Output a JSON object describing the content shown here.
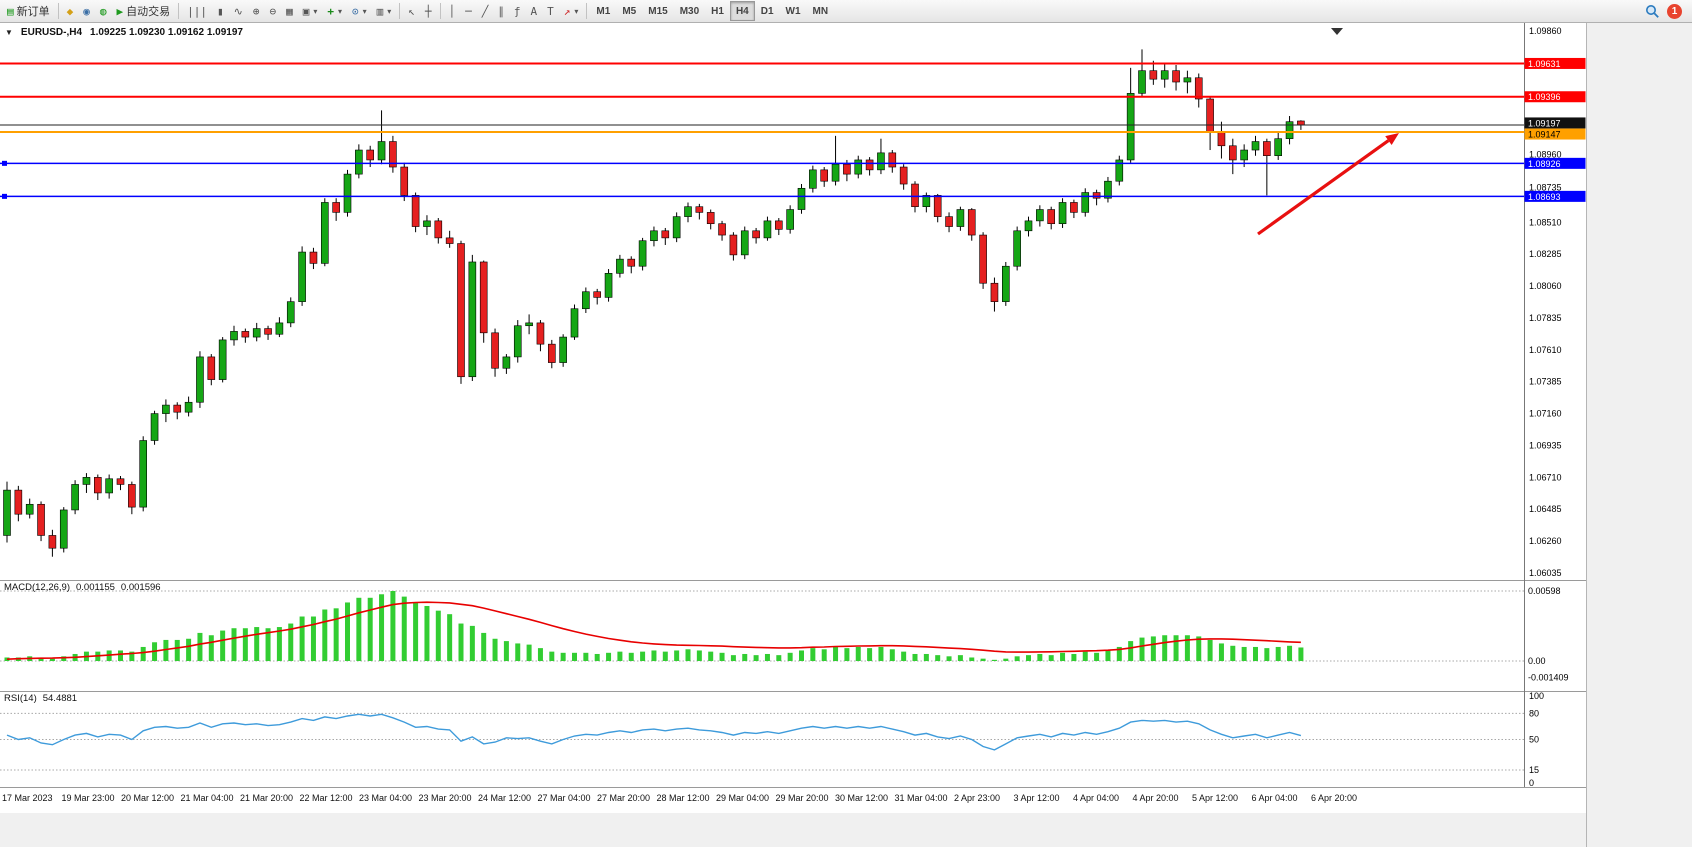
{
  "toolbar": {
    "new_order_label": "新订单",
    "autot_label": "自动交易",
    "timeframes": [
      "M1",
      "M5",
      "M15",
      "M30",
      "H1",
      "H4",
      "D1",
      "W1",
      "MN"
    ],
    "active_timeframe": "H4",
    "notification_count": "1"
  },
  "icons": {
    "collapse": "▼",
    "new_order": "▤",
    "charts": "◆",
    "profile": "◉",
    "algo": "◍",
    "autotrading": "▶",
    "bar_chart": "|||",
    "candle_chart": "▮",
    "line_chart": "∿",
    "zoom_in": "⊕",
    "zoom_out": "⊖",
    "tile_windows": "▦",
    "new_chart": "▣",
    "indicators": "+",
    "periods": "⊙",
    "templates": "▥",
    "cursor": "↖",
    "crosshair": "┼",
    "vertical_line": "│",
    "horizontal_line": "─",
    "trendline": "╱",
    "channel": "∥",
    "fibonacci": "ƒ",
    "text": "A",
    "text_label": "T",
    "arrows": "↗",
    "caret": "▾"
  },
  "window": {
    "symbol_period": "EURUSD-,H4",
    "ohlc_text": "1.09225 1.09230 1.09162 1.09197"
  },
  "colors": {
    "bull": "#15A615",
    "bear": "#E52020",
    "wick": "#000000",
    "background": "#FFFFFF",
    "macd_histogram": "#32CD32",
    "macd_signal": "#E80000",
    "rsi_line": "#3E9BDB",
    "arrow": "#E81010"
  },
  "chart_data": {
    "type": "candlestick",
    "symbol": "EURUSD-",
    "timeframe": "H4",
    "price_range": {
      "top": 1.0986,
      "bottom": 1.06035
    },
    "price_axis_ticks": [
      1.0986,
      1.0896,
      1.08735,
      1.0851,
      1.08285,
      1.0806,
      1.07835,
      1.0761,
      1.07385,
      1.0716,
      1.06935,
      1.0671,
      1.06485,
      1.0626,
      1.06035
    ],
    "time_labels": [
      "17 Mar 2023",
      "19 Mar 23:00",
      "20 Mar 12:00",
      "21 Mar 04:00",
      "21 Mar 20:00",
      "22 Mar 12:00",
      "23 Mar 04:00",
      "23 Mar 20:00",
      "24 Mar 12:00",
      "27 Mar 04:00",
      "27 Mar 20:00",
      "28 Mar 12:00",
      "29 Mar 04:00",
      "29 Mar 20:00",
      "30 Mar 12:00",
      "31 Mar 04:00",
      "2 Apr 23:00",
      "3 Apr 12:00",
      "4 Apr 04:00",
      "4 Apr 20:00",
      "5 Apr 12:00",
      "6 Apr 04:00",
      "6 Apr 20:00"
    ],
    "levels": [
      {
        "price": 1.09631,
        "label": "1.09631",
        "color": "#FF0000",
        "width": 2,
        "badge_fg": "#FFFFFF"
      },
      {
        "price": 1.09396,
        "label": "1.09396",
        "color": "#FF0000",
        "width": 2,
        "badge_fg": "#FFFFFF"
      },
      {
        "price": 1.09197,
        "label": "1.09197",
        "color": "#222222",
        "width": 1,
        "badge_fg": "#FFFFFF",
        "badge_dy": -2,
        "current": true
      },
      {
        "price": 1.09147,
        "label": "1.09147",
        "color": "#FFA000",
        "width": 2,
        "badge_fg": "#000000",
        "badge_dy": 2
      },
      {
        "price": 1.08926,
        "label": "1.08926",
        "color": "#0000FF",
        "width": 1.5,
        "badge_fg": "#FFFFFF",
        "handles": true
      },
      {
        "price": 1.08693,
        "label": "1.08693",
        "color": "#0000FF",
        "width": 1.5,
        "badge_fg": "#FFFFFF",
        "handles": true
      }
    ],
    "candles": [
      [
        1.063,
        1.0668,
        1.0625,
        1.0662
      ],
      [
        1.0662,
        1.0665,
        1.064,
        1.0645
      ],
      [
        1.0645,
        1.0656,
        1.0642,
        1.0652
      ],
      [
        1.0652,
        1.0654,
        1.0626,
        1.063
      ],
      [
        1.063,
        1.0634,
        1.0615,
        1.0621
      ],
      [
        1.0621,
        1.065,
        1.0618,
        1.0648
      ],
      [
        1.0648,
        1.0669,
        1.0645,
        1.0666
      ],
      [
        1.0666,
        1.0674,
        1.066,
        1.0671
      ],
      [
        1.0671,
        1.0673,
        1.0655,
        1.066
      ],
      [
        1.066,
        1.0673,
        1.0656,
        1.067
      ],
      [
        1.067,
        1.0672,
        1.0662,
        1.0666
      ],
      [
        1.0666,
        1.0668,
        1.0645,
        1.065
      ],
      [
        1.065,
        1.07,
        1.0647,
        1.0697
      ],
      [
        1.0697,
        1.0718,
        1.0694,
        1.0716
      ],
      [
        1.0716,
        1.0726,
        1.071,
        1.0722
      ],
      [
        1.0722,
        1.0724,
        1.0712,
        1.0717
      ],
      [
        1.0717,
        1.0728,
        1.0714,
        1.0724
      ],
      [
        1.0724,
        1.076,
        1.072,
        1.0756
      ],
      [
        1.0756,
        1.0758,
        1.0736,
        1.074
      ],
      [
        1.074,
        1.077,
        1.0738,
        1.0768
      ],
      [
        1.0768,
        1.0778,
        1.0764,
        1.0774
      ],
      [
        1.0774,
        1.0776,
        1.0766,
        1.077
      ],
      [
        1.077,
        1.078,
        1.0767,
        1.0776
      ],
      [
        1.0776,
        1.0778,
        1.0768,
        1.0772
      ],
      [
        1.0772,
        1.0784,
        1.077,
        1.078
      ],
      [
        1.078,
        1.0798,
        1.0777,
        1.0795
      ],
      [
        1.0795,
        1.0834,
        1.0792,
        1.083
      ],
      [
        1.083,
        1.0833,
        1.0818,
        1.0822
      ],
      [
        1.0822,
        1.0868,
        1.082,
        1.0865
      ],
      [
        1.0865,
        1.0868,
        1.0852,
        1.0858
      ],
      [
        1.0858,
        1.0888,
        1.0855,
        1.0885
      ],
      [
        1.0885,
        1.0906,
        1.0882,
        1.0902
      ],
      [
        1.0902,
        1.0905,
        1.089,
        1.0895
      ],
      [
        1.0895,
        1.093,
        1.0892,
        1.0908
      ],
      [
        1.0908,
        1.0912,
        1.0886,
        1.089
      ],
      [
        1.089,
        1.0893,
        1.0866,
        1.087
      ],
      [
        1.087,
        1.0872,
        1.0844,
        1.0848
      ],
      [
        1.0848,
        1.0856,
        1.0842,
        1.0852
      ],
      [
        1.0852,
        1.0854,
        1.0836,
        1.084
      ],
      [
        1.084,
        1.0845,
        1.0833,
        1.0836
      ],
      [
        1.0836,
        1.0838,
        1.0737,
        1.0742
      ],
      [
        1.0742,
        1.0828,
        1.0739,
        1.0823
      ],
      [
        1.0823,
        1.0824,
        1.0766,
        1.0773
      ],
      [
        1.0773,
        1.0776,
        1.0742,
        1.0748
      ],
      [
        1.0748,
        1.0758,
        1.0744,
        1.0756
      ],
      [
        1.0756,
        1.0782,
        1.0752,
        1.0778
      ],
      [
        1.0778,
        1.0786,
        1.0772,
        1.078
      ],
      [
        1.078,
        1.0782,
        1.076,
        1.0765
      ],
      [
        1.0765,
        1.0768,
        1.0748,
        1.0752
      ],
      [
        1.0752,
        1.0772,
        1.0749,
        1.077
      ],
      [
        1.077,
        1.0793,
        1.0768,
        1.079
      ],
      [
        1.079,
        1.0805,
        1.0787,
        1.0802
      ],
      [
        1.0802,
        1.0804,
        1.0793,
        1.0798
      ],
      [
        1.0798,
        1.0818,
        1.0795,
        1.0815
      ],
      [
        1.0815,
        1.0828,
        1.0812,
        1.0825
      ],
      [
        1.0825,
        1.0827,
        1.0815,
        1.082
      ],
      [
        1.082,
        1.084,
        1.0817,
        1.0838
      ],
      [
        1.0838,
        1.0848,
        1.0834,
        1.0845
      ],
      [
        1.0845,
        1.0847,
        1.0835,
        1.084
      ],
      [
        1.084,
        1.0858,
        1.0837,
        1.0855
      ],
      [
        1.0855,
        1.0865,
        1.0851,
        1.0862
      ],
      [
        1.0862,
        1.0864,
        1.0853,
        1.0858
      ],
      [
        1.0858,
        1.086,
        1.0846,
        1.085
      ],
      [
        1.085,
        1.0852,
        1.0838,
        1.0842
      ],
      [
        1.0842,
        1.0844,
        1.0824,
        1.0828
      ],
      [
        1.0828,
        1.0848,
        1.0825,
        1.0845
      ],
      [
        1.0845,
        1.0847,
        1.0836,
        1.084
      ],
      [
        1.084,
        1.0855,
        1.0838,
        1.0852
      ],
      [
        1.0852,
        1.0854,
        1.0842,
        1.0846
      ],
      [
        1.0846,
        1.0863,
        1.0843,
        1.086
      ],
      [
        1.086,
        1.0878,
        1.0857,
        1.0875
      ],
      [
        1.0875,
        1.0891,
        1.0872,
        1.0888
      ],
      [
        1.0888,
        1.089,
        1.0876,
        1.088
      ],
      [
        1.088,
        1.0912,
        1.0877,
        1.0892
      ],
      [
        1.0892,
        1.0895,
        1.088,
        1.0885
      ],
      [
        1.0885,
        1.0898,
        1.0882,
        1.0895
      ],
      [
        1.0895,
        1.0897,
        1.0884,
        1.0888
      ],
      [
        1.0888,
        1.091,
        1.0885,
        1.09
      ],
      [
        1.09,
        1.0902,
        1.0886,
        1.089
      ],
      [
        1.089,
        1.0892,
        1.0874,
        1.0878
      ],
      [
        1.0878,
        1.088,
        1.0858,
        1.0862
      ],
      [
        1.0862,
        1.0872,
        1.0858,
        1.087
      ],
      [
        1.087,
        1.0871,
        1.0851,
        1.0855
      ],
      [
        1.0855,
        1.0858,
        1.0844,
        1.0848
      ],
      [
        1.0848,
        1.0862,
        1.0845,
        1.086
      ],
      [
        1.086,
        1.0861,
        1.0838,
        1.0842
      ],
      [
        1.0842,
        1.0844,
        1.0804,
        1.0808
      ],
      [
        1.0808,
        1.0812,
        1.0788,
        1.0795
      ],
      [
        1.0795,
        1.0823,
        1.0792,
        1.082
      ],
      [
        1.082,
        1.0848,
        1.0817,
        1.0845
      ],
      [
        1.0845,
        1.0855,
        1.0841,
        1.0852
      ],
      [
        1.0852,
        1.0863,
        1.0848,
        1.086
      ],
      [
        1.086,
        1.0862,
        1.0846,
        1.085
      ],
      [
        1.085,
        1.0868,
        1.0847,
        1.0865
      ],
      [
        1.0865,
        1.0867,
        1.0854,
        1.0858
      ],
      [
        1.0858,
        1.0875,
        1.0855,
        1.0872
      ],
      [
        1.0872,
        1.0874,
        1.0863,
        1.0868
      ],
      [
        1.0868,
        1.0883,
        1.0865,
        1.088
      ],
      [
        1.088,
        1.0898,
        1.0877,
        1.0895
      ],
      [
        1.0895,
        1.096,
        1.0893,
        1.0942
      ],
      [
        1.0942,
        1.0973,
        1.094,
        1.0958
      ],
      [
        1.0958,
        1.0965,
        1.0948,
        1.0952
      ],
      [
        1.0952,
        1.0963,
        1.0946,
        1.0958
      ],
      [
        1.0958,
        1.0962,
        1.0944,
        1.095
      ],
      [
        1.095,
        1.0958,
        1.0942,
        1.0953
      ],
      [
        1.0953,
        1.0956,
        1.0932,
        1.0938
      ],
      [
        1.0938,
        1.094,
        1.0902,
        1.0915
      ],
      [
        1.0915,
        1.0922,
        1.0896,
        1.0905
      ],
      [
        1.0905,
        1.091,
        1.0885,
        1.0895
      ],
      [
        1.0895,
        1.0906,
        1.089,
        1.0902
      ],
      [
        1.0902,
        1.0912,
        1.0898,
        1.0908
      ],
      [
        1.0908,
        1.091,
        1.087,
        1.0898
      ],
      [
        1.0898,
        1.0915,
        1.0895,
        1.091
      ],
      [
        1.091,
        1.0926,
        1.0906,
        1.0922
      ],
      [
        1.09225,
        1.0923,
        1.09162,
        1.09197
      ]
    ],
    "indicators": {
      "macd": {
        "name": "MACD(12,26,9)",
        "value_main": "0.001155",
        "value_signal": "0.001596",
        "scale_labels": [
          {
            "v": 0.00598,
            "t": "0.00598"
          },
          {
            "v": 0,
            "t": "0.00"
          },
          {
            "v": -0.001409,
            "t": "-0.001409"
          }
        ],
        "histogram": [
          0.0003,
          0.0003,
          0.0004,
          0.0003,
          0.0002,
          0.0004,
          0.0006,
          0.0008,
          0.0008,
          0.0009,
          0.0009,
          0.0008,
          0.0012,
          0.0016,
          0.0018,
          0.0018,
          0.0019,
          0.0024,
          0.0022,
          0.0026,
          0.0028,
          0.0028,
          0.0029,
          0.0028,
          0.0029,
          0.0032,
          0.0038,
          0.0038,
          0.0044,
          0.0045,
          0.005,
          0.0054,
          0.0054,
          0.0057,
          0.00598,
          0.0055,
          0.005,
          0.0047,
          0.0043,
          0.004,
          0.0032,
          0.003,
          0.0024,
          0.0019,
          0.0017,
          0.0015,
          0.0014,
          0.0011,
          0.0008,
          0.0007,
          0.0007,
          0.0007,
          0.0006,
          0.0007,
          0.0008,
          0.0007,
          0.0008,
          0.0009,
          0.0008,
          0.0009,
          0.001,
          0.0009,
          0.0008,
          0.0007,
          0.0005,
          0.0006,
          0.0005,
          0.0006,
          0.0005,
          0.0007,
          0.0009,
          0.0011,
          0.001,
          0.0012,
          0.0011,
          0.0012,
          0.0011,
          0.0012,
          0.001,
          0.0008,
          0.0006,
          0.0006,
          0.0005,
          0.0004,
          0.0005,
          0.0003,
          0.0002,
          0.0001,
          0.0002,
          0.0004,
          0.0005,
          0.0006,
          0.0005,
          0.0007,
          0.0006,
          0.0008,
          0.0007,
          0.0009,
          0.0012,
          0.0017,
          0.002,
          0.0021,
          0.0022,
          0.0022,
          0.0022,
          0.0021,
          0.0018,
          0.0015,
          0.0013,
          0.0012,
          0.0012,
          0.0011,
          0.0012,
          0.0013,
          0.001155
        ],
        "signal": [
          0.00015,
          0.0002,
          0.00022,
          0.00024,
          0.00025,
          0.00028,
          0.00032,
          0.00038,
          0.00044,
          0.0005,
          0.00058,
          0.00064,
          0.00072,
          0.00084,
          0.00098,
          0.00112,
          0.00126,
          0.00144,
          0.0016,
          0.00178,
          0.00196,
          0.00212,
          0.00228,
          0.00242,
          0.00256,
          0.00272,
          0.00292,
          0.00312,
          0.00336,
          0.00358,
          0.00384,
          0.00412,
          0.00436,
          0.0046,
          0.00482,
          0.00494,
          0.005,
          0.00502,
          0.005,
          0.00496,
          0.00484,
          0.00472,
          0.00452,
          0.00428,
          0.00404,
          0.0038,
          0.00356,
          0.0033,
          0.00302,
          0.00276,
          0.00252,
          0.0023,
          0.0021,
          0.00192,
          0.00178,
          0.00164,
          0.00154,
          0.00146,
          0.0014,
          0.00136,
          0.00134,
          0.00132,
          0.0013,
          0.00127,
          0.00122,
          0.00119,
          0.00116,
          0.00114,
          0.00112,
          0.00112,
          0.00114,
          0.00118,
          0.0012,
          0.00124,
          0.00126,
          0.00128,
          0.00129,
          0.00131,
          0.00131,
          0.00129,
          0.00125,
          0.00121,
          0.00116,
          0.0011,
          0.00106,
          0.001,
          0.00092,
          0.00084,
          0.00078,
          0.00076,
          0.00076,
          0.00078,
          0.00079,
          0.00081,
          0.00083,
          0.00086,
          0.00088,
          0.00092,
          0.00099,
          0.00112,
          0.00128,
          0.00143,
          0.00157,
          0.00169,
          0.00179,
          0.00186,
          0.00189,
          0.00189,
          0.00186,
          0.00182,
          0.00178,
          0.00173,
          0.00168,
          0.00163,
          0.001596
        ]
      },
      "rsi": {
        "name": "RSI(14)",
        "value": "54.4881",
        "scale_levels": [
          100,
          80,
          50,
          15,
          0
        ],
        "dotted_levels": [
          80,
          50,
          15
        ],
        "values": [
          55,
          50,
          52,
          46,
          44,
          50,
          55,
          57,
          53,
          56,
          55,
          50,
          60,
          64,
          65,
          63,
          64,
          69,
          64,
          68,
          69,
          67,
          68,
          66,
          67,
          70,
          74,
          72,
          76,
          74,
          77,
          79,
          77,
          79,
          75,
          70,
          64,
          65,
          62,
          61,
          48,
          53,
          45,
          47,
          52,
          51,
          52,
          48,
          45,
          50,
          54,
          56,
          55,
          58,
          60,
          58,
          61,
          62,
          60,
          62,
          63,
          61,
          60,
          58,
          55,
          58,
          57,
          59,
          57,
          60,
          63,
          65,
          63,
          65,
          63,
          65,
          63,
          65,
          62,
          59,
          55,
          57,
          53,
          51,
          54,
          50,
          42,
          38,
          45,
          52,
          54,
          56,
          53,
          57,
          55,
          58,
          56,
          59,
          63,
          70,
          72,
          71,
          72,
          70,
          71,
          68,
          61,
          56,
          52,
          54,
          56,
          52,
          55,
          58,
          54.4881
        ]
      }
    },
    "annotations": [
      {
        "type": "arrow",
        "from": [
          1258,
          211
        ],
        "to": [
          1399,
          110
        ]
      }
    ]
  }
}
